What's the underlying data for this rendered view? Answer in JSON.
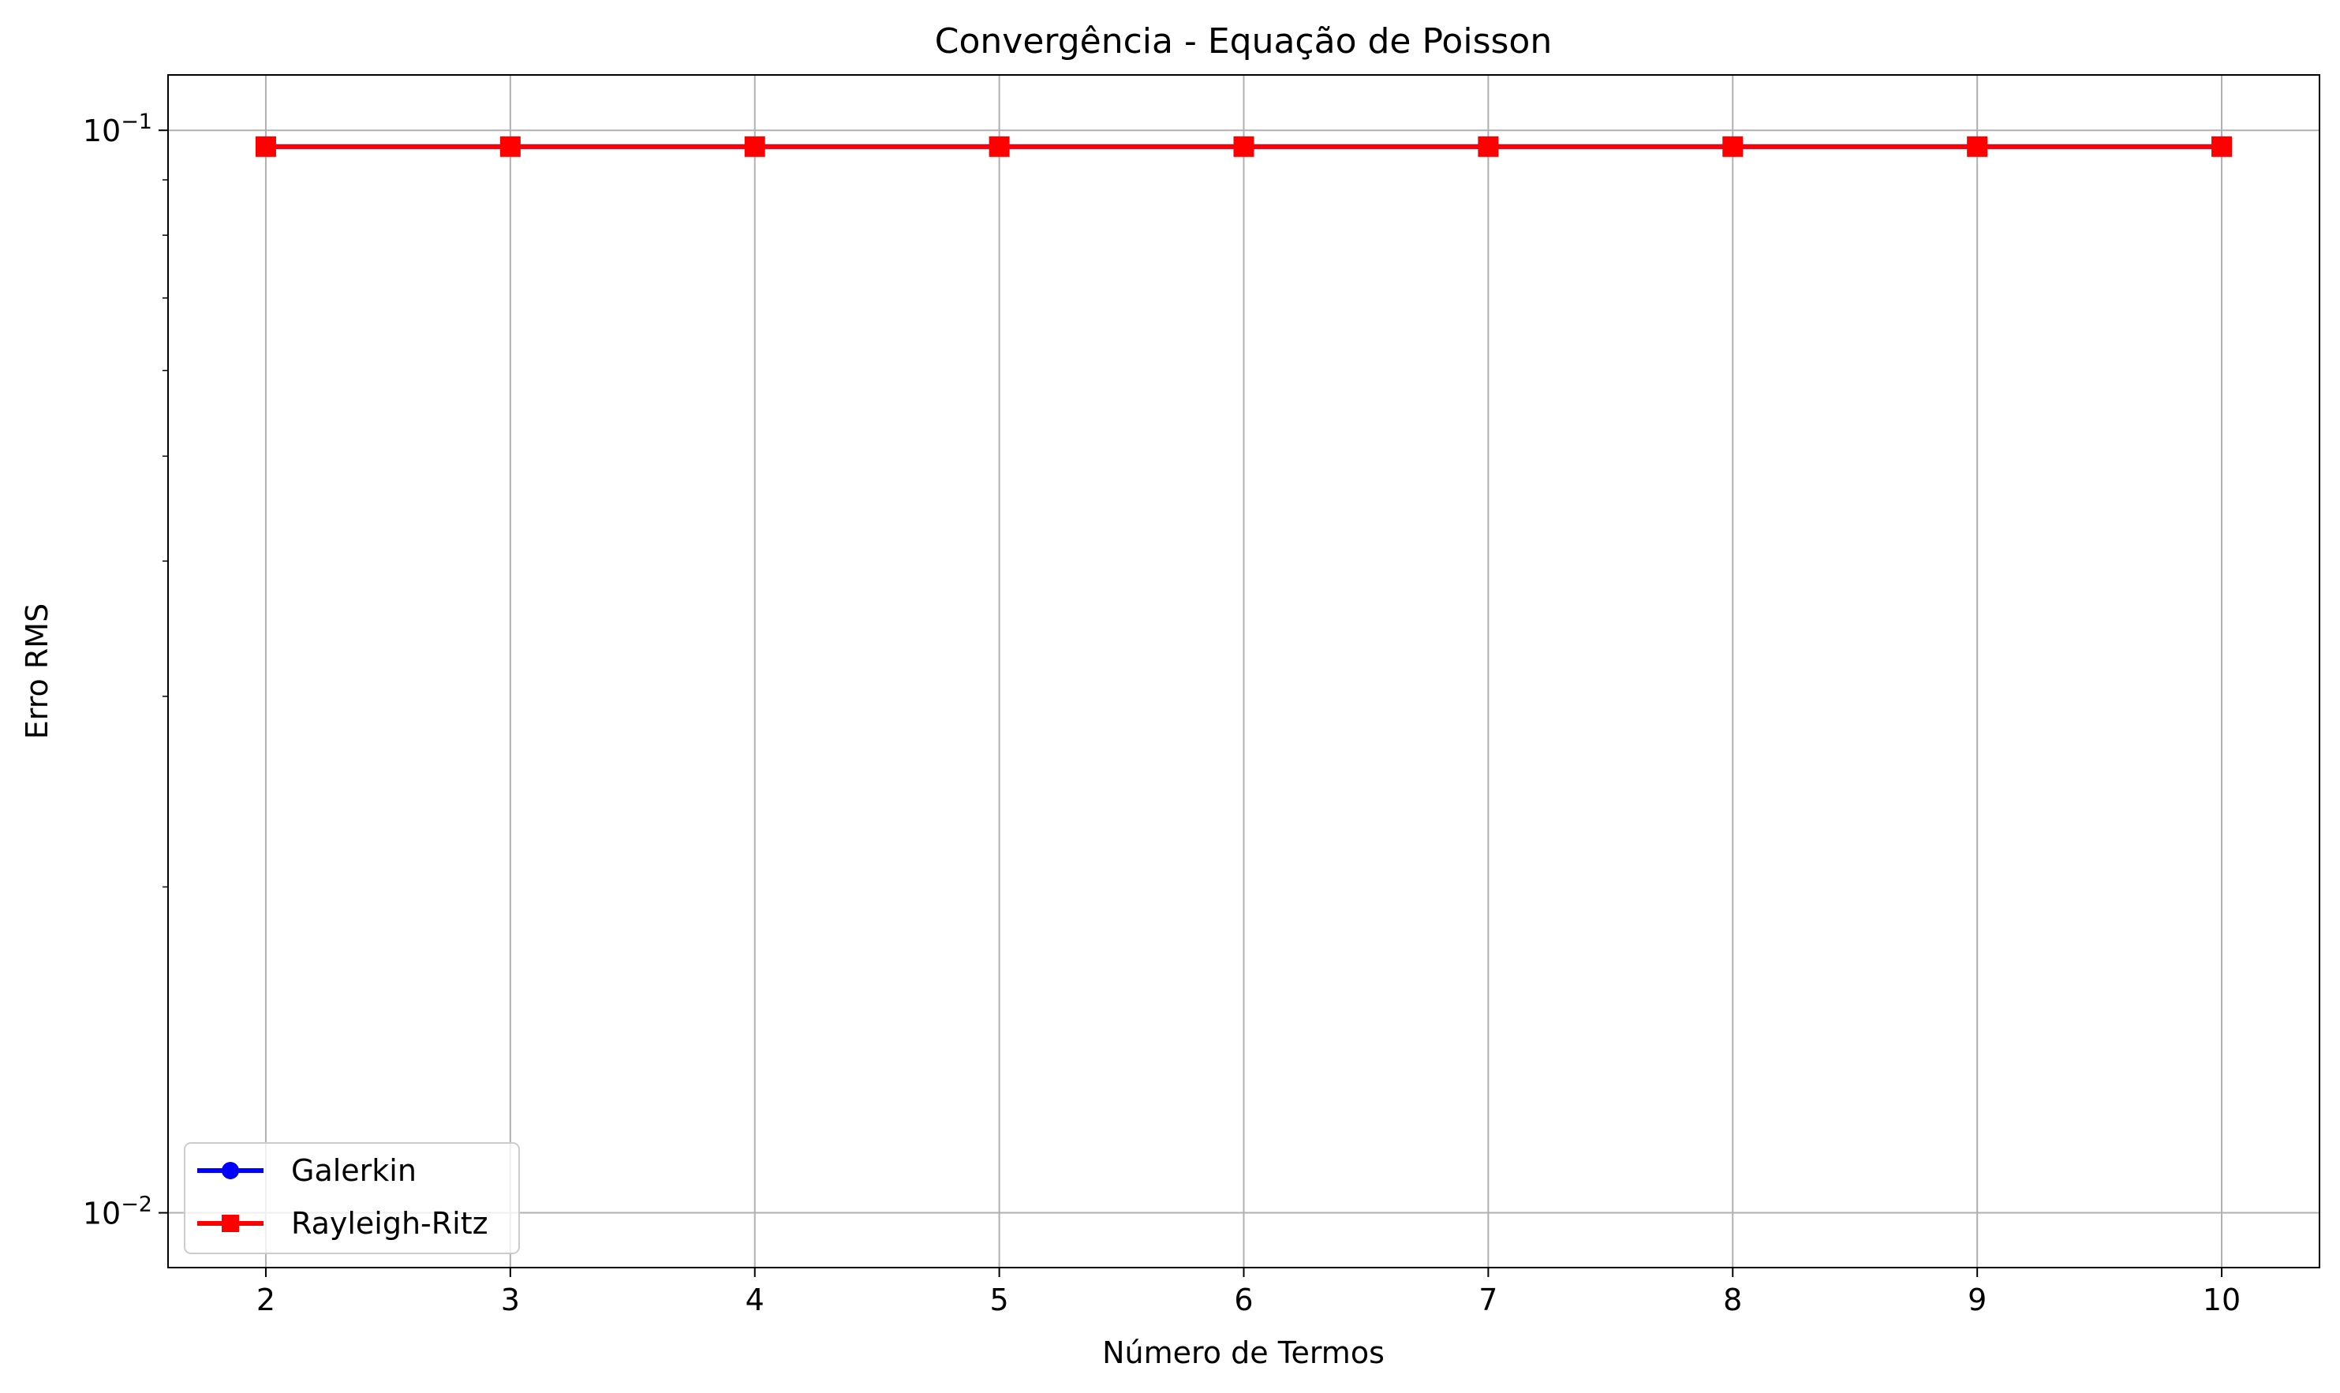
{
  "chart_data": {
    "type": "line",
    "title": "Convergência - Equação de Poisson",
    "xlabel": "Número de Termos",
    "ylabel": "Erro RMS",
    "x": [
      2,
      3,
      4,
      5,
      6,
      7,
      8,
      9,
      10
    ],
    "xlim": [
      1.6,
      10.4
    ],
    "y_scale": "log",
    "ylim": [
      0.0089,
      0.1125
    ],
    "y_major_ticks": [
      {
        "value": 0.01,
        "base": "10",
        "exp": "−2"
      },
      {
        "value": 0.1,
        "base": "10",
        "exp": "−1"
      }
    ],
    "y_minor_ticks": [
      0.02,
      0.03,
      0.04,
      0.05,
      0.06,
      0.07,
      0.08,
      0.09
    ],
    "grid": true,
    "legend_position": "lower-left",
    "series": [
      {
        "name": "Galerkin",
        "color": "#0000ff",
        "marker": "circle",
        "values": [
          0.0966,
          0.0966,
          0.0966,
          0.0966,
          0.0966,
          0.0966,
          0.0966,
          0.0966,
          0.0966
        ]
      },
      {
        "name": "Rayleigh-Ritz",
        "color": "#ff0000",
        "marker": "square",
        "values": [
          0.0966,
          0.0966,
          0.0966,
          0.0966,
          0.0966,
          0.0966,
          0.0966,
          0.0966,
          0.0966
        ]
      }
    ]
  }
}
